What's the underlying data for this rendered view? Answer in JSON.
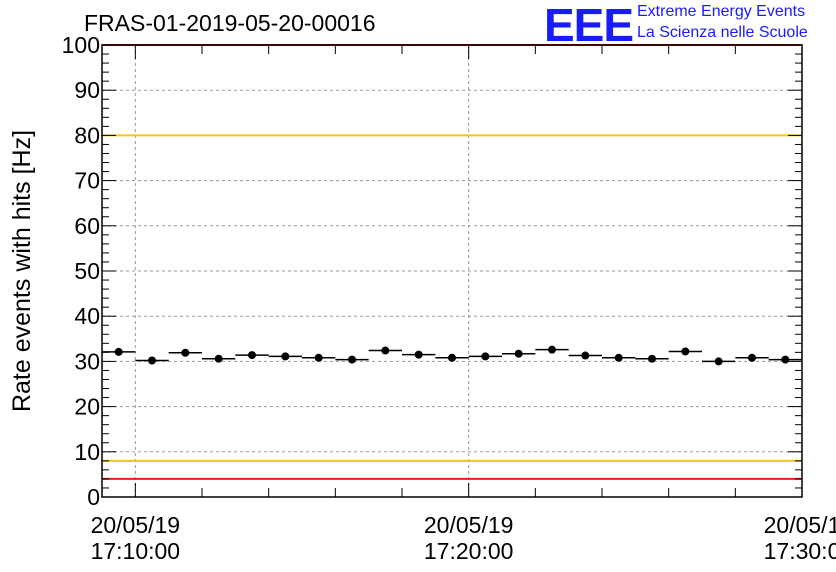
{
  "header": {
    "run_id": "FRAS-01-2019-05-20-00016",
    "logo_text": "EEE",
    "logo_line1": "Extreme Energy Events",
    "logo_line2": "La Scienza nelle Scuole"
  },
  "chart_data": {
    "type": "scatter",
    "title": "FRAS-01-2019-05-20-00016",
    "xlabel": "",
    "ylabel": "Rate events with hits [Hz]",
    "ylim": [
      0,
      100
    ],
    "yticks": [
      0,
      10,
      20,
      30,
      40,
      50,
      60,
      70,
      80,
      90,
      100
    ],
    "xlim": [
      "2019-05-20 17:09:00",
      "2019-05-20 17:30:00"
    ],
    "xticks": [
      {
        "date": "20/05/19",
        "time": "17:10:00"
      },
      {
        "date": "20/05/19",
        "time": "17:20:00"
      },
      {
        "date": "20/05/1",
        "time": "17:30:0"
      }
    ],
    "grid": true,
    "bin_width_minutes": 1,
    "series": [
      {
        "x": [
          "17:09:30",
          "17:10:30",
          "17:11:30",
          "17:12:30",
          "17:13:30",
          "17:14:30",
          "17:15:30",
          "17:16:30",
          "17:17:30",
          "17:18:30",
          "17:19:30",
          "17:20:30",
          "17:21:30",
          "17:22:30",
          "17:23:30",
          "17:24:30",
          "17:25:30",
          "17:26:30",
          "17:27:30",
          "17:28:30",
          "17:29:30"
        ],
        "values": [
          32.1,
          30.2,
          31.9,
          30.6,
          31.4,
          31.1,
          30.8,
          30.4,
          32.4,
          31.5,
          30.8,
          31.1,
          31.7,
          32.6,
          31.3,
          30.8,
          30.6,
          32.2,
          30.0,
          30.8,
          30.4
        ],
        "color": "#000000"
      }
    ],
    "reference_lines": [
      {
        "y": 100,
        "color": "#e8201c"
      },
      {
        "y": 80,
        "color": "#f2c811"
      },
      {
        "y": 8,
        "color": "#f2c811"
      },
      {
        "y": 4,
        "color": "#e8201c"
      }
    ]
  }
}
